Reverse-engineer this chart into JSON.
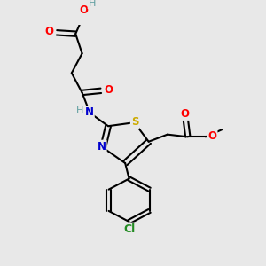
{
  "bg_color": "#e8e8e8",
  "bond_color": "#000000",
  "bond_width": 1.5,
  "atom_colors": {
    "C": "#000000",
    "H": "#5f9ea0",
    "O": "#ff0000",
    "N": "#0000cd",
    "S": "#ccaa00",
    "Cl": "#228b22"
  },
  "figsize": [
    3.0,
    3.0
  ],
  "dpi": 100
}
